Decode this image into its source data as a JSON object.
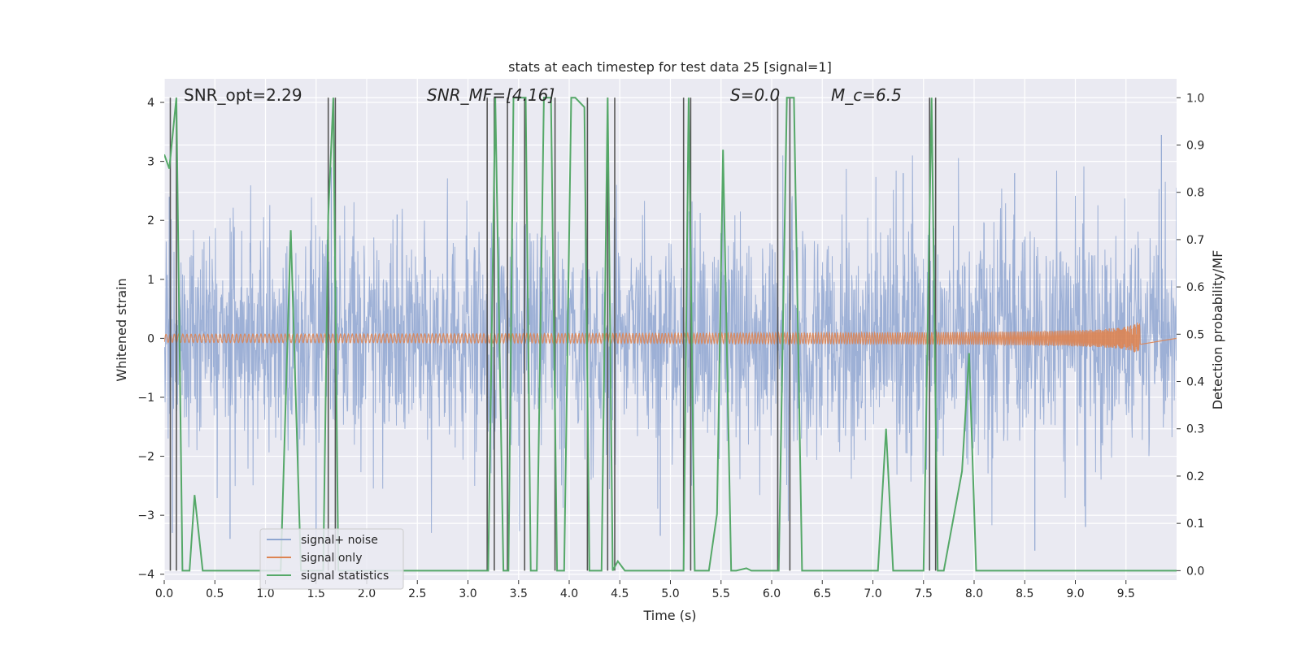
{
  "chart_data": {
    "type": "line",
    "title": "stats at each timestep for test data 25 [signal=1]",
    "xlabel": "Time (s)",
    "ylabel_left": "Whitened strain",
    "ylabel_right": "Detection probability/MF",
    "xlim": [
      0.0,
      10.0
    ],
    "ylim_left": [
      -4.1,
      4.4
    ],
    "ylim_right": [
      -0.02,
      1.04
    ],
    "x_ticks": [
      "0.0",
      "0.5",
      "1.0",
      "1.5",
      "2.0",
      "2.5",
      "3.0",
      "3.5",
      "4.0",
      "4.5",
      "5.0",
      "5.5",
      "6.0",
      "6.5",
      "7.0",
      "7.5",
      "8.0",
      "8.5",
      "9.0",
      "9.5"
    ],
    "y_ticks_left": [
      -4,
      -3,
      -2,
      -1,
      0,
      1,
      2,
      3,
      4
    ],
    "y_tick_labels_left": [
      "−4",
      "−3",
      "−2",
      "−1",
      "0",
      "1",
      "2",
      "3",
      "4"
    ],
    "y_ticks_right": [
      "0.0",
      "0.1",
      "0.2",
      "0.3",
      "0.4",
      "0.5",
      "0.6",
      "0.7",
      "0.8",
      "0.9",
      "1.0"
    ],
    "grid": true,
    "legend_position": "lower-left",
    "annotations": [
      {
        "text": "SNR_opt=2.29",
        "x": 0.18
      },
      {
        "text": "SNR_MF=[4.16]",
        "x": 2.6
      },
      {
        "text": "S=0.0",
        "x": 5.6
      },
      {
        "text": "M_c=6.5",
        "x": 6.6
      }
    ],
    "series": [
      {
        "name": "signal+ noise",
        "color": "#8fa6d1",
        "kind": "noise",
        "envelope_upper_typical": [
          1.0,
          2.4
        ],
        "envelope_lower_typical": [
          -1.0,
          -2.4
        ],
        "notable_peaks": [
          {
            "x": 9.85,
            "y": 3.45
          },
          {
            "x": 0.05,
            "y": 2.4
          },
          {
            "x": 1.65,
            "y": 2.9
          },
          {
            "x": 2.3,
            "y": 2.1
          },
          {
            "x": 7.3,
            "y": 2.8
          },
          {
            "x": 8.4,
            "y": 2.8
          }
        ],
        "notable_troughs": [
          {
            "x": 0.08,
            "y": -3.3
          },
          {
            "x": 0.65,
            "y": -3.4
          },
          {
            "x": 1.5,
            "y": -3.4
          },
          {
            "x": 4.9,
            "y": -3.35
          },
          {
            "x": 8.6,
            "y": -3.6
          },
          {
            "x": 9.1,
            "y": -3.2
          }
        ]
      },
      {
        "name": "signal only",
        "color": "#dd8452",
        "kind": "chirp",
        "x_start": 0.0,
        "x_end": 9.65,
        "max_amplitude": 0.27
      },
      {
        "name": "signal statistics",
        "color": "#55a868",
        "x": [
          0.0,
          0.05,
          0.12,
          0.18,
          0.25,
          0.3,
          0.38,
          0.45,
          1.15,
          1.25,
          1.35,
          1.57,
          1.62,
          1.67,
          1.72,
          2.45,
          2.55,
          3.2,
          3.27,
          3.35,
          3.4,
          3.45,
          3.5,
          3.57,
          3.62,
          3.68,
          3.75,
          3.82,
          3.88,
          3.95,
          4.02,
          4.06,
          4.15,
          4.2,
          4.32,
          4.38,
          4.43,
          4.48,
          4.55,
          5.13,
          5.18,
          5.24,
          5.38,
          5.46,
          5.52,
          5.6,
          5.65,
          5.75,
          5.8,
          6.07,
          6.15,
          6.22,
          6.3,
          7.05,
          7.13,
          7.2,
          7.5,
          7.58,
          7.64,
          7.7,
          7.88,
          7.95,
          8.02,
          10.0
        ],
        "y": [
          0.88,
          0.85,
          1.0,
          0.0,
          0.0,
          0.16,
          0.0,
          0.0,
          0.0,
          0.72,
          0.0,
          0.0,
          0.75,
          1.0,
          0.0,
          0.0,
          0.0,
          0.0,
          1.0,
          0.0,
          0.0,
          1.0,
          1.0,
          1.0,
          0.0,
          0.0,
          1.0,
          1.0,
          0.0,
          0.0,
          1.0,
          1.0,
          0.98,
          0.0,
          0.0,
          1.0,
          0.0,
          0.02,
          0.0,
          0.0,
          1.0,
          0.0,
          0.0,
          0.12,
          0.89,
          0.0,
          0.0,
          0.005,
          0.0,
          0.0,
          1.0,
          1.0,
          0.0,
          0.0,
          0.3,
          0.0,
          0.0,
          1.0,
          0.0,
          0.0,
          0.21,
          0.46,
          0.0,
          0.0
        ]
      }
    ],
    "vertical_markers": {
      "color": "#555555",
      "x": [
        0.06,
        0.12,
        1.62,
        1.69,
        3.19,
        3.26,
        3.39,
        3.56,
        3.86,
        4.18,
        4.38,
        4.45,
        5.13,
        5.2,
        6.06,
        6.18,
        7.56,
        7.62
      ]
    }
  }
}
